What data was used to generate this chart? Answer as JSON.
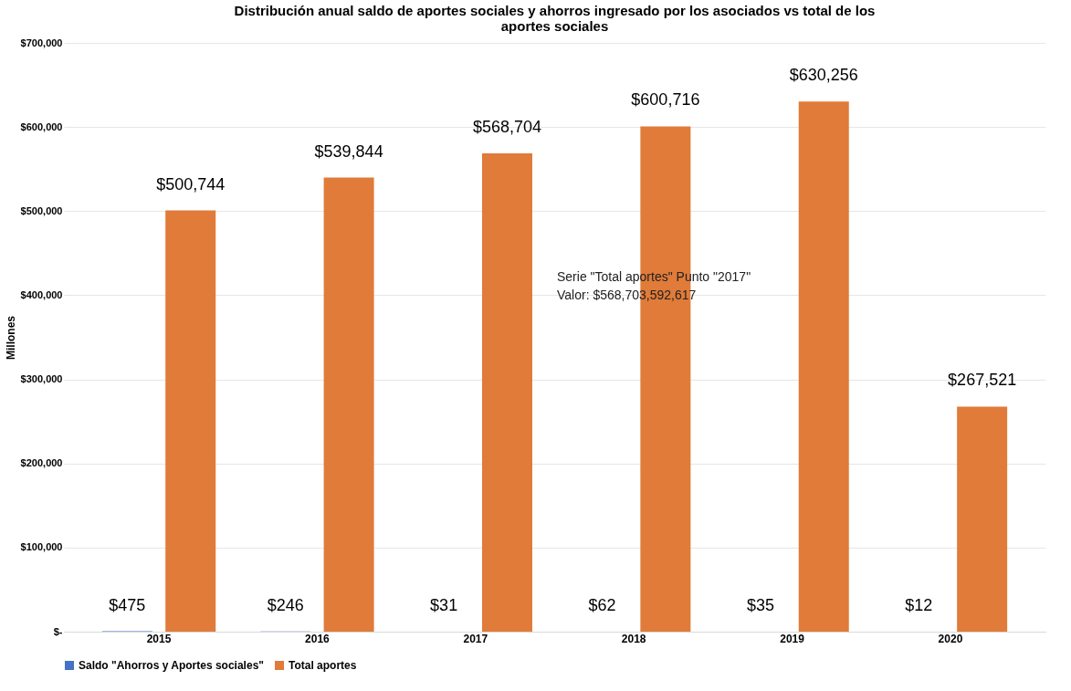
{
  "chart_data": {
    "type": "bar",
    "title": "Distribución anual saldo de aportes sociales y ahorros ingresado por los asociados vs total de los aportes sociales",
    "ylabel": "Millones",
    "categories": [
      "2015",
      "2016",
      "2017",
      "2018",
      "2019",
      "2020"
    ],
    "series": [
      {
        "name": "Saldo \"Ahorros y Aportes sociales\"",
        "color": "#4472c4",
        "values": [
          475,
          246,
          31,
          62,
          35,
          12
        ],
        "value_labels": [
          "$475",
          "$246",
          "$31",
          "$62",
          "$35",
          "$12"
        ]
      },
      {
        "name": "Total aportes",
        "color": "#e07b39",
        "values": [
          500744,
          539844,
          568704,
          600716,
          630256,
          267521
        ],
        "value_labels": [
          "$500,744",
          "$539,844",
          "$568,704",
          "$600,716",
          "$630,256",
          "$267,521"
        ]
      }
    ],
    "ylim": [
      0,
      700000
    ],
    "yticks": [
      {
        "value": 0,
        "label": "$-"
      },
      {
        "value": 100000,
        "label": "$100,000"
      },
      {
        "value": 200000,
        "label": "$200,000"
      },
      {
        "value": 300000,
        "label": "$300,000"
      },
      {
        "value": 400000,
        "label": "$400,000"
      },
      {
        "value": 500000,
        "label": "$500,000"
      },
      {
        "value": 600000,
        "label": "$600,000"
      },
      {
        "value": 700000,
        "label": "$700,000"
      }
    ],
    "grid": "y",
    "legend": "bottom",
    "annotations": [
      "Serie \"Total aportes\" Punto \"2017\"",
      "Valor:  $568,703,592,617"
    ]
  }
}
